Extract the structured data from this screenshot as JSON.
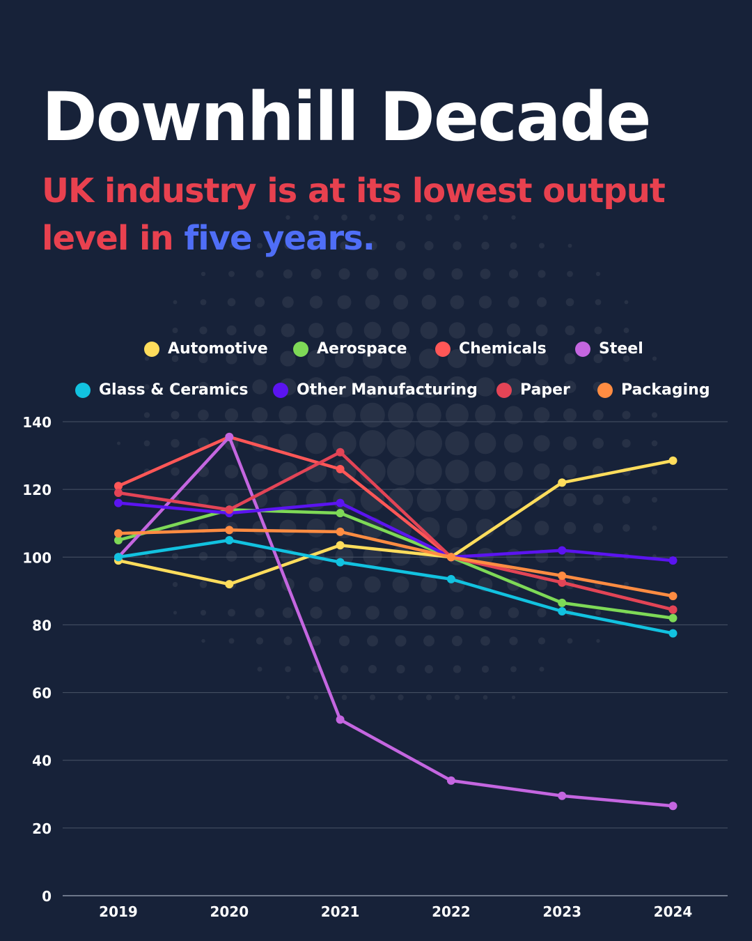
{
  "title": "Downhill Decade",
  "subtitle": {
    "part1": "UK industry is at its lowest output level in ",
    "highlight": "five years."
  },
  "colors": {
    "background": "#172239",
    "subtitle": "#e8414f",
    "highlight": "#4f6ef7"
  },
  "chart_data": {
    "type": "line",
    "title": "",
    "xlabel": "",
    "ylabel": "",
    "x": [
      "2019",
      "2020",
      "2021",
      "2022",
      "2023",
      "2024"
    ],
    "ylim": [
      0,
      140
    ],
    "yticks": [
      0,
      20,
      40,
      60,
      80,
      100,
      120,
      140
    ],
    "grid": true,
    "legend_placement": "top",
    "series": [
      {
        "name": "Automotive",
        "color": "#ffdd5c",
        "values": [
          99,
          92,
          103.5,
          100,
          122,
          128.5
        ]
      },
      {
        "name": "Aerospace",
        "color": "#7ed957",
        "values": [
          105,
          114,
          113,
          100,
          86.5,
          82
        ]
      },
      {
        "name": "Chemicals",
        "color": "#ff5757",
        "values": [
          121,
          135.5,
          126,
          100,
          92.5,
          84.5
        ]
      },
      {
        "name": "Steel",
        "color": "#c466e0",
        "values": [
          100,
          135.5,
          52,
          34,
          29.5,
          26.5
        ]
      },
      {
        "name": "Glass & Ceramics",
        "color": "#12c2e0",
        "values": [
          100,
          105,
          98.5,
          93.5,
          84,
          77.5
        ]
      },
      {
        "name": "Other Manufacturing",
        "color": "#5b14f0",
        "values": [
          116,
          113,
          116,
          100,
          102,
          99
        ]
      },
      {
        "name": "Paper",
        "color": "#e34456",
        "values": [
          119,
          114,
          131,
          100,
          92.5,
          84.5
        ]
      },
      {
        "name": "Packaging",
        "color": "#ff8c42",
        "values": [
          107,
          108,
          107.5,
          100,
          94.5,
          88.5
        ]
      }
    ]
  }
}
